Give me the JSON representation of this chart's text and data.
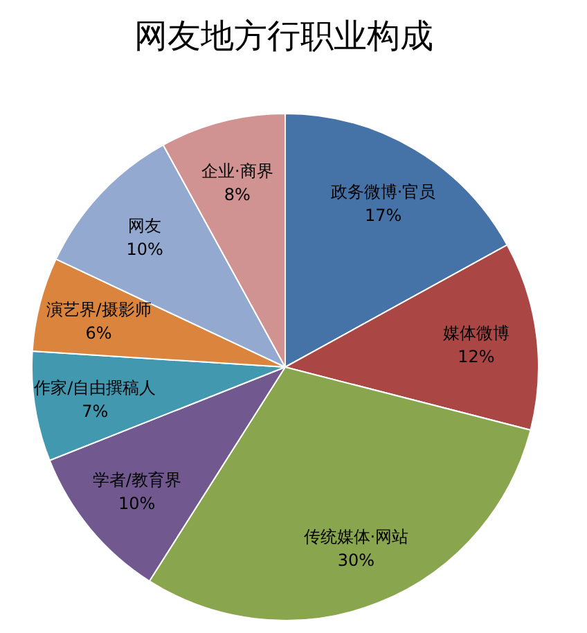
{
  "chart_data": {
    "type": "pie",
    "title": "网友地方行职业构成",
    "categories": [
      "政务微博·官员",
      "媒体微博",
      "传统媒体·网站",
      "学者/教育界",
      "作家/自由撰稿人",
      "演艺界/摄影师",
      "网友",
      "企业·商界"
    ],
    "values": [
      17,
      12,
      30,
      10,
      7,
      6,
      10,
      8
    ],
    "colors": [
      "#4572a7",
      "#aa4643",
      "#89a54e",
      "#71588f",
      "#4198af",
      "#db843d",
      "#93a9cf",
      "#d19392"
    ],
    "value_labels": [
      "17%",
      "12%",
      "30%",
      "10%",
      "7%",
      "6%",
      "10%",
      "8%"
    ]
  }
}
